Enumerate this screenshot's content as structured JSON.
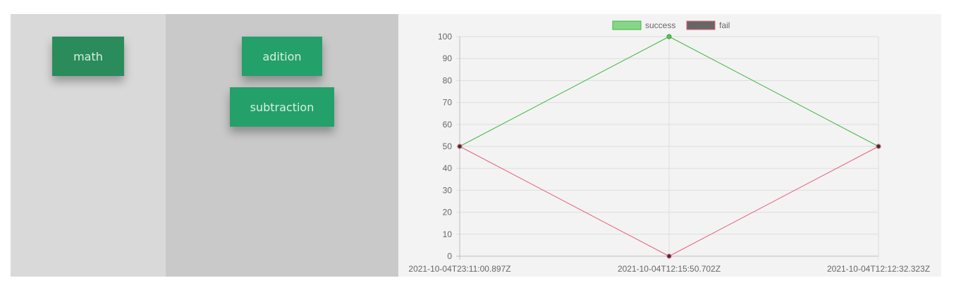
{
  "categories": {
    "buttons": [
      {
        "label": "math"
      }
    ]
  },
  "tests": {
    "buttons": [
      {
        "label": "adition"
      },
      {
        "label": "subtraction"
      }
    ]
  },
  "chart_data": {
    "type": "line",
    "x": [
      "2021-10-04T23:11:00.897Z",
      "2021-10-04T12:15:50.702Z",
      "2021-10-04T12:12:32.323Z"
    ],
    "series": [
      {
        "name": "success",
        "values": [
          50,
          100,
          50
        ],
        "color": "#3fb83f",
        "fill": "#88d488"
      },
      {
        "name": "fail",
        "values": [
          50,
          0,
          50
        ],
        "color": "#e8607a",
        "fill": "#666666"
      }
    ],
    "ylim": [
      0,
      100
    ],
    "yticks": [
      0,
      10,
      20,
      30,
      40,
      50,
      60,
      70,
      80,
      90,
      100
    ],
    "grid": true,
    "legend": "top-center"
  }
}
